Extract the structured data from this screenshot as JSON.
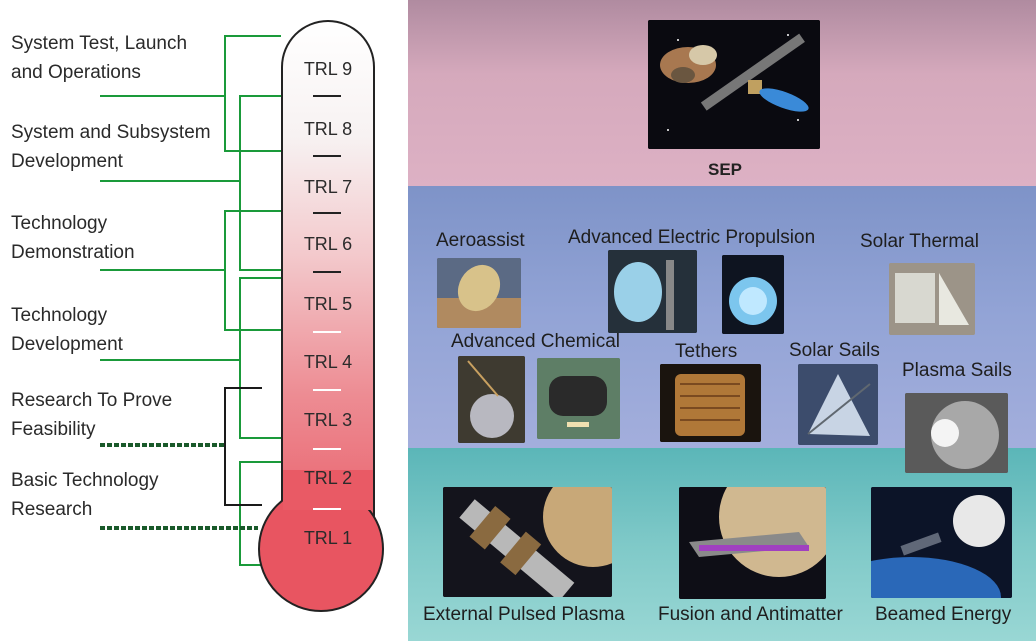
{
  "stages": [
    {
      "lines": [
        "System Test, Launch",
        "and Operations"
      ]
    },
    {
      "lines": [
        "System and Subsystem",
        "Development"
      ]
    },
    {
      "lines": [
        "Technology",
        "Demonstration"
      ]
    },
    {
      "lines": [
        "Technology",
        "Development"
      ]
    },
    {
      "lines": [
        "Research To Prove",
        "Feasibility"
      ]
    },
    {
      "lines": [
        "Basic Technology",
        "Research"
      ]
    }
  ],
  "trl_levels": [
    "TRL 9",
    "TRL 8",
    "TRL 7",
    "TRL 6",
    "TRL 5",
    "TRL 4",
    "TRL 3",
    "TRL 2",
    "TRL 1"
  ],
  "panels": {
    "sep": {
      "label": "SEP"
    },
    "middle": {
      "aeroassist": "Aeroassist",
      "advanced_electric": "Advanced Electric Propulsion",
      "solar_thermal": "Solar Thermal",
      "advanced_chemical": "Advanced Chemical",
      "tethers": "Tethers",
      "solar_sails": "Solar Sails",
      "plasma_sails": "Plasma Sails"
    },
    "bottom": {
      "external_pulsed_plasma": "External Pulsed Plasma",
      "fusion_antimatter": "Fusion and Antimatter",
      "beamed_energy": "Beamed Energy"
    }
  },
  "colors": {
    "connector_green": "#1a9a3a",
    "connector_dashed": "#1a1a1a",
    "bulb_red": "#e85561"
  }
}
